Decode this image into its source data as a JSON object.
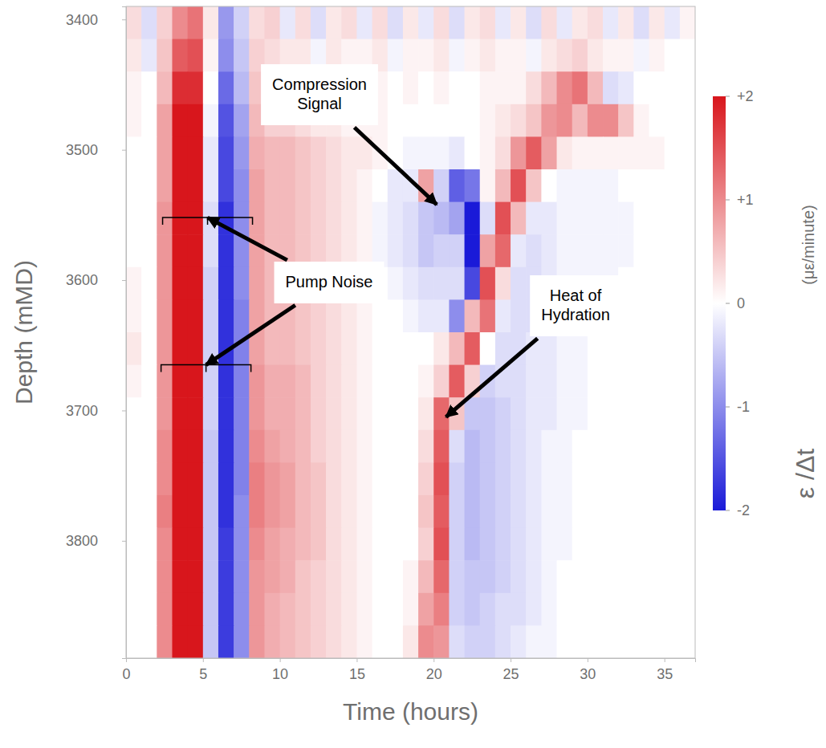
{
  "chart_data": {
    "type": "heatmap",
    "xlabel": "Time (hours)",
    "ylabel": "Depth (mMD)",
    "xlim": [
      0,
      37
    ],
    "ylim": [
      3390,
      3890
    ],
    "xticks": [
      0,
      5,
      10,
      15,
      20,
      25,
      30,
      35
    ],
    "yticks": [
      3400,
      3500,
      3600,
      3700,
      3800
    ],
    "colors": [
      "#1a1ad8",
      "#ffffff",
      "#d8161c"
    ],
    "x_bins": [
      0,
      1,
      2,
      3,
      4,
      5,
      6,
      7,
      8,
      9,
      10,
      11,
      12,
      13,
      14,
      15,
      16,
      17,
      18,
      19,
      20,
      21,
      22,
      23,
      24,
      25,
      26,
      27,
      28,
      29,
      30,
      31,
      32,
      33,
      34,
      35,
      36,
      37
    ],
    "y_bins": [
      3390,
      3415,
      3440,
      3465,
      3490,
      3515,
      3540,
      3565,
      3590,
      3615,
      3640,
      3665,
      3690,
      3715,
      3740,
      3765,
      3790,
      3815,
      3840,
      3865,
      3890
    ],
    "z": [
      [
        0.3,
        -0.3,
        0.4,
        1.0,
        1.2,
        0.2,
        -0.9,
        -0.4,
        0.3,
        0.4,
        -0.2,
        0.3,
        -0.3,
        0.2,
        0.3,
        -0.2,
        0.3,
        -0.3,
        0.2,
        -0.2,
        0.3,
        -0.3,
        0.2,
        0.3,
        -0.2,
        0.2,
        -0.3,
        0.3,
        -0.2,
        0.2,
        0.3,
        -0.2,
        0.2,
        -0.3,
        0.2,
        -0.2,
        0.1
      ],
      [
        0.2,
        -0.2,
        0.5,
        1.4,
        1.5,
        0.1,
        -1.0,
        -0.5,
        0.4,
        0.3,
        0.2,
        0.2,
        -0.1,
        0.2,
        0.1,
        0.1,
        0.2,
        -0.1,
        0.1,
        0.1,
        0.2,
        -0.1,
        0.1,
        0.2,
        0.1,
        0.1,
        -0.1,
        0.2,
        0.3,
        0.4,
        0.2,
        0.1,
        0.1,
        -0.1,
        0.1,
        0.0,
        0.0
      ],
      [
        0.1,
        0.0,
        0.6,
        1.8,
        1.8,
        0.0,
        -1.3,
        -0.6,
        0.5,
        0.3,
        0.3,
        0.2,
        0.1,
        0.1,
        0.1,
        0.1,
        0.1,
        0.0,
        0.1,
        0.0,
        0.1,
        0.0,
        0.0,
        0.1,
        0.1,
        0.1,
        0.3,
        0.6,
        1.0,
        1.2,
        0.6,
        -0.3,
        -0.2,
        0.0,
        0.0,
        0.0,
        0.0
      ],
      [
        0.1,
        0.0,
        0.8,
        2.0,
        2.0,
        -0.1,
        -1.5,
        -0.8,
        0.6,
        0.4,
        0.4,
        0.3,
        0.2,
        0.2,
        0.1,
        0.1,
        0.1,
        0.0,
        0.0,
        0.0,
        0.0,
        0.0,
        0.0,
        0.1,
        0.2,
        0.3,
        0.5,
        0.9,
        1.0,
        0.6,
        1.0,
        1.0,
        0.5,
        0.1,
        0.0,
        0.0,
        0.0
      ],
      [
        0.0,
        0.0,
        0.8,
        2.0,
        2.0,
        -0.2,
        -1.6,
        -0.9,
        0.7,
        0.6,
        0.6,
        0.5,
        0.4,
        0.3,
        0.2,
        0.2,
        0.1,
        0.0,
        -0.1,
        -0.1,
        -0.1,
        -0.2,
        0.0,
        0.1,
        0.3,
        0.9,
        1.4,
        0.8,
        0.2,
        0.1,
        0.1,
        0.1,
        0.1,
        0.1,
        0.1,
        0.0,
        0.0
      ],
      [
        0.0,
        0.0,
        0.8,
        2.0,
        2.0,
        -0.2,
        -1.6,
        -1.0,
        0.8,
        0.6,
        0.6,
        0.5,
        0.4,
        0.3,
        0.2,
        0.1,
        0.0,
        -0.2,
        -0.2,
        0.8,
        -0.4,
        -1.4,
        -1.2,
        0.1,
        0.6,
        1.5,
        0.5,
        0.0,
        -0.1,
        -0.1,
        -0.1,
        -0.1,
        0.0,
        0.0,
        0.0,
        0.0,
        0.0
      ],
      [
        0.0,
        0.0,
        0.9,
        2.0,
        2.0,
        -0.3,
        -1.8,
        -1.0,
        0.8,
        0.6,
        0.6,
        0.5,
        0.4,
        0.3,
        0.2,
        0.1,
        -0.1,
        -0.2,
        -0.3,
        -0.5,
        -0.6,
        -0.8,
        -2.0,
        -0.3,
        1.5,
        0.6,
        -0.2,
        -0.2,
        -0.1,
        -0.1,
        -0.1,
        -0.1,
        -0.1,
        0.0,
        0.0,
        0.0,
        0.0
      ],
      [
        0.0,
        0.0,
        0.9,
        2.0,
        2.0,
        -0.3,
        -1.8,
        -1.0,
        0.8,
        0.6,
        0.6,
        0.5,
        0.4,
        0.3,
        0.2,
        0.1,
        -0.1,
        -0.2,
        -0.3,
        -0.5,
        -0.4,
        -0.4,
        -2.0,
        0.8,
        1.3,
        -0.2,
        -0.3,
        -0.2,
        -0.1,
        -0.1,
        -0.1,
        -0.1,
        -0.1,
        0.0,
        0.0,
        0.0,
        0.0
      ],
      [
        0.1,
        0.0,
        0.9,
        2.0,
        2.0,
        -0.4,
        -1.8,
        -1.0,
        0.8,
        0.6,
        0.6,
        0.5,
        0.4,
        0.3,
        0.2,
        0.1,
        0.0,
        -0.1,
        -0.2,
        -0.3,
        -0.3,
        -0.3,
        -1.6,
        1.5,
        0.3,
        -0.3,
        -0.3,
        -0.2,
        -0.1,
        -0.1,
        -0.1,
        -0.1,
        0.0,
        0.0,
        0.0,
        0.0,
        0.0
      ],
      [
        0.1,
        0.0,
        0.9,
        2.0,
        2.0,
        -0.4,
        -1.8,
        -1.1,
        0.8,
        0.6,
        0.6,
        0.5,
        0.4,
        0.3,
        0.2,
        0.1,
        0.0,
        0.0,
        -0.1,
        -0.2,
        -0.2,
        -1.0,
        0.6,
        1.2,
        -0.2,
        -0.3,
        -0.3,
        -0.2,
        -0.1,
        -0.1,
        -0.1,
        0.0,
        0.0,
        0.0,
        0.0,
        0.0,
        0.0
      ],
      [
        0.2,
        0.0,
        0.9,
        2.0,
        2.0,
        -0.4,
        -1.8,
        -1.1,
        0.8,
        0.6,
        0.6,
        0.5,
        0.4,
        0.3,
        0.2,
        0.1,
        0.0,
        0.0,
        0.0,
        0.0,
        0.2,
        0.6,
        1.4,
        0.0,
        -0.3,
        -0.3,
        -0.2,
        -0.2,
        -0.1,
        -0.1,
        0.0,
        0.0,
        0.0,
        0.0,
        0.0,
        0.0,
        0.0
      ],
      [
        0.1,
        0.0,
        0.9,
        2.0,
        2.0,
        -0.4,
        -1.8,
        -1.1,
        0.9,
        0.7,
        0.7,
        0.6,
        0.4,
        0.3,
        0.2,
        0.1,
        0.0,
        0.0,
        0.0,
        0.1,
        0.4,
        1.4,
        0.4,
        -0.4,
        -0.3,
        -0.3,
        -0.2,
        -0.2,
        -0.1,
        -0.1,
        0.0,
        0.0,
        0.0,
        0.0,
        0.0,
        0.0,
        0.0
      ],
      [
        0.0,
        0.0,
        0.9,
        2.0,
        2.0,
        -0.4,
        -1.8,
        -1.1,
        0.9,
        0.7,
        0.7,
        0.6,
        0.4,
        0.3,
        0.2,
        0.1,
        0.0,
        0.0,
        0.0,
        0.2,
        1.3,
        0.5,
        -0.5,
        -0.5,
        -0.4,
        -0.3,
        -0.2,
        -0.2,
        -0.1,
        -0.1,
        0.0,
        0.0,
        0.0,
        0.0,
        0.0,
        0.0,
        0.0
      ],
      [
        0.0,
        0.0,
        1.0,
        2.0,
        2.0,
        -0.5,
        -1.8,
        -1.1,
        1.0,
        0.8,
        0.7,
        0.6,
        0.4,
        0.3,
        0.2,
        0.1,
        0.0,
        0.0,
        0.0,
        0.3,
        1.4,
        -0.3,
        -0.6,
        -0.5,
        -0.4,
        -0.3,
        -0.2,
        -0.1,
        -0.1,
        0.0,
        0.0,
        0.0,
        0.0,
        0.0,
        0.0,
        0.0,
        0.0
      ],
      [
        0.0,
        0.0,
        1.0,
        2.0,
        2.0,
        -0.5,
        -1.8,
        -1.1,
        1.1,
        0.9,
        0.8,
        0.6,
        0.5,
        0.3,
        0.2,
        0.1,
        0.0,
        0.0,
        0.0,
        0.4,
        1.5,
        -0.4,
        -0.6,
        -0.5,
        -0.4,
        -0.3,
        -0.2,
        -0.1,
        -0.1,
        0.0,
        0.0,
        0.0,
        0.0,
        0.0,
        0.0,
        0.0,
        0.0
      ],
      [
        0.0,
        0.0,
        1.1,
        2.0,
        2.0,
        -0.5,
        -1.8,
        -1.0,
        1.1,
        0.9,
        0.8,
        0.6,
        0.5,
        0.3,
        0.2,
        0.1,
        0.0,
        0.0,
        0.0,
        0.5,
        1.4,
        -0.4,
        -0.6,
        -0.5,
        -0.4,
        -0.3,
        -0.2,
        -0.1,
        -0.1,
        0.0,
        0.0,
        0.0,
        0.0,
        0.0,
        0.0,
        0.0,
        0.0
      ],
      [
        0.0,
        0.0,
        1.0,
        2.0,
        2.0,
        -0.5,
        -1.7,
        -1.0,
        1.0,
        0.8,
        0.7,
        0.6,
        0.5,
        0.3,
        0.2,
        0.1,
        0.0,
        0.0,
        0.0,
        0.4,
        1.5,
        -0.4,
        -0.6,
        -0.5,
        -0.4,
        -0.3,
        -0.2,
        -0.1,
        -0.1,
        0.0,
        0.0,
        0.0,
        0.0,
        0.0,
        0.0,
        0.0,
        0.0
      ],
      [
        0.0,
        0.0,
        1.0,
        2.0,
        2.0,
        -0.5,
        -1.7,
        -1.0,
        0.9,
        0.8,
        0.7,
        0.5,
        0.4,
        0.3,
        0.2,
        0.1,
        0.0,
        0.0,
        0.1,
        0.6,
        1.3,
        -0.4,
        -0.5,
        -0.5,
        -0.4,
        -0.3,
        -0.2,
        -0.1,
        0.0,
        0.0,
        0.0,
        0.0,
        0.0,
        0.0,
        0.0,
        0.0,
        0.0
      ],
      [
        0.0,
        0.0,
        1.0,
        2.0,
        2.0,
        -0.5,
        -1.7,
        -1.0,
        0.9,
        0.7,
        0.6,
        0.5,
        0.4,
        0.3,
        0.2,
        0.1,
        0.0,
        0.0,
        0.1,
        0.8,
        1.1,
        -0.4,
        -0.5,
        -0.4,
        -0.3,
        -0.3,
        -0.2,
        -0.1,
        0.0,
        0.0,
        0.0,
        0.0,
        0.0,
        0.0,
        0.0,
        0.0,
        0.0
      ],
      [
        0.0,
        0.0,
        1.0,
        2.0,
        2.0,
        -0.5,
        -1.7,
        -1.0,
        0.9,
        0.7,
        0.6,
        0.5,
        0.4,
        0.3,
        0.2,
        0.1,
        0.0,
        0.0,
        0.2,
        1.0,
        0.9,
        -0.3,
        -0.4,
        -0.4,
        -0.3,
        -0.2,
        -0.1,
        -0.1,
        0.0,
        0.0,
        0.0,
        0.0,
        0.0,
        0.0,
        0.0,
        0.0,
        0.0
      ]
    ],
    "colorbar": {
      "range": [
        -2,
        2
      ],
      "ticks": [
        {
          "value": 2,
          "label": "+2"
        },
        {
          "value": 1,
          "label": "+1"
        },
        0,
        -1,
        -2
      ],
      "label": "ε /Δt",
      "unit": "(με/minute)"
    },
    "annotations": [
      {
        "text": "Compression Signal",
        "points": [
          [
            20.2,
            3542
          ]
        ]
      },
      {
        "text": "Pump Noise",
        "points": [
          [
            5.3,
            3552
          ],
          [
            5.2,
            3665
          ]
        ]
      },
      {
        "text": "Heat of Hydration",
        "points": [
          [
            20.8,
            3705
          ]
        ]
      }
    ]
  }
}
